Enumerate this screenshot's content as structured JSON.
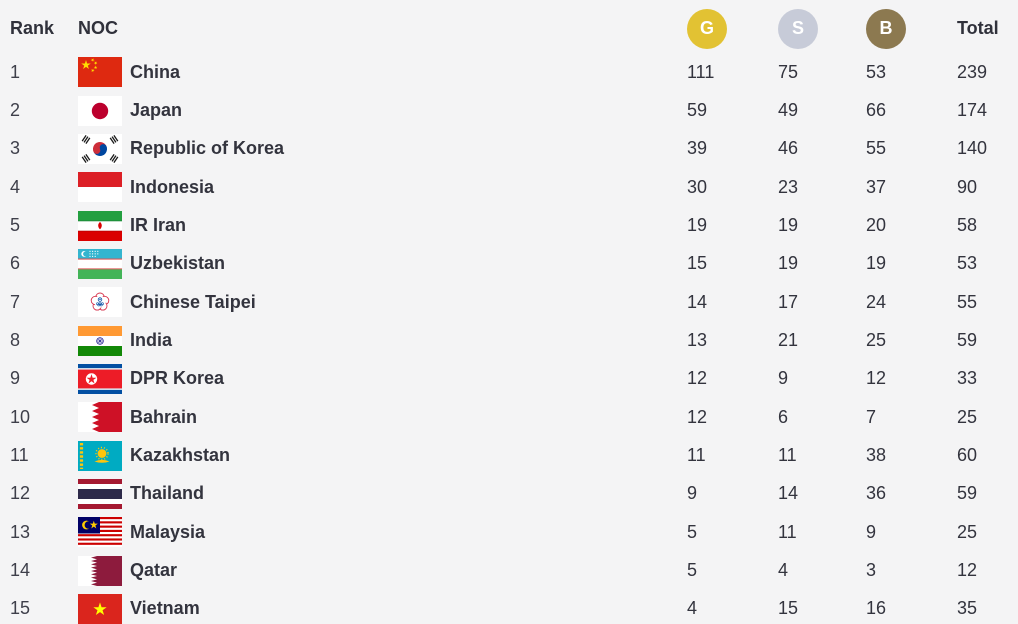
{
  "table": {
    "headers": {
      "rank": "Rank",
      "noc": "NOC",
      "gold": "G",
      "silver": "S",
      "bronze": "B",
      "total": "Total"
    },
    "medal_colors": {
      "gold": "#e2c233",
      "silver": "#c7cbd8",
      "bronze": "#8c7950"
    },
    "rows": [
      {
        "rank": "1",
        "noc": "China",
        "flag": "china",
        "gold": 111,
        "silver": 75,
        "bronze": 53,
        "total": 239
      },
      {
        "rank": "2",
        "noc": "Japan",
        "flag": "japan",
        "gold": 59,
        "silver": 49,
        "bronze": 66,
        "total": 174
      },
      {
        "rank": "3",
        "noc": "Republic of Korea",
        "flag": "korea",
        "gold": 39,
        "silver": 46,
        "bronze": 55,
        "total": 140
      },
      {
        "rank": "4",
        "noc": "Indonesia",
        "flag": "indonesia",
        "gold": 30,
        "silver": 23,
        "bronze": 37,
        "total": 90
      },
      {
        "rank": "5",
        "noc": "IR Iran",
        "flag": "iran",
        "gold": 19,
        "silver": 19,
        "bronze": 20,
        "total": 58
      },
      {
        "rank": "6",
        "noc": "Uzbekistan",
        "flag": "uzbekistan",
        "gold": 15,
        "silver": 19,
        "bronze": 19,
        "total": 53
      },
      {
        "rank": "7",
        "noc": "Chinese Taipei",
        "flag": "chinese-taipei",
        "gold": 14,
        "silver": 17,
        "bronze": 24,
        "total": 55
      },
      {
        "rank": "8",
        "noc": "India",
        "flag": "india",
        "gold": 13,
        "silver": 21,
        "bronze": 25,
        "total": 59
      },
      {
        "rank": "9",
        "noc": "DPR Korea",
        "flag": "dpr-korea",
        "gold": 12,
        "silver": 9,
        "bronze": 12,
        "total": 33
      },
      {
        "rank": "10",
        "noc": "Bahrain",
        "flag": "bahrain",
        "gold": 12,
        "silver": 6,
        "bronze": 7,
        "total": 25
      },
      {
        "rank": "11",
        "noc": "Kazakhstan",
        "flag": "kazakhstan",
        "gold": 11,
        "silver": 11,
        "bronze": 38,
        "total": 60
      },
      {
        "rank": "12",
        "noc": "Thailand",
        "flag": "thailand",
        "gold": 9,
        "silver": 14,
        "bronze": 36,
        "total": 59
      },
      {
        "rank": "13",
        "noc": "Malaysia",
        "flag": "malaysia",
        "gold": 5,
        "silver": 11,
        "bronze": 9,
        "total": 25
      },
      {
        "rank": "14",
        "noc": "Qatar",
        "flag": "qatar",
        "gold": 5,
        "silver": 4,
        "bronze": 3,
        "total": 12
      },
      {
        "rank": "15",
        "noc": "Vietnam",
        "flag": "vietnam",
        "gold": 4,
        "silver": 15,
        "bronze": 16,
        "total": 35
      }
    ]
  }
}
